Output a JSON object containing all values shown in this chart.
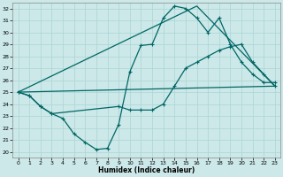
{
  "xlabel": "Humidex (Indice chaleur)",
  "xlim": [
    -0.5,
    23.5
  ],
  "ylim": [
    19.5,
    32.5
  ],
  "xticks": [
    0,
    1,
    2,
    3,
    4,
    5,
    6,
    7,
    8,
    9,
    10,
    11,
    12,
    13,
    14,
    15,
    16,
    17,
    18,
    19,
    20,
    21,
    22,
    23
  ],
  "yticks": [
    20,
    21,
    22,
    23,
    24,
    25,
    26,
    27,
    28,
    29,
    30,
    31,
    32
  ],
  "bg_color": "#cce8e8",
  "grid_color": "#aad4d4",
  "line_color": "#006666",
  "line1_x": [
    0,
    1,
    2,
    3,
    4,
    5,
    6,
    7,
    8,
    9,
    10,
    11,
    12,
    13,
    14,
    15,
    16,
    17,
    18,
    19,
    20,
    21,
    22,
    23
  ],
  "line1_y": [
    25.0,
    24.7,
    23.8,
    23.2,
    22.8,
    21.5,
    20.8,
    20.2,
    20.3,
    22.3,
    26.7,
    28.9,
    29.0,
    31.2,
    32.2,
    32.0,
    31.2,
    30.0,
    31.2,
    29.0,
    27.5,
    26.5,
    25.8,
    25.8
  ],
  "line1_markers": [
    0,
    1,
    2,
    3,
    4,
    5,
    6,
    7,
    8,
    9,
    10,
    11,
    12,
    13,
    14,
    15,
    16,
    17,
    18,
    19,
    20,
    21,
    22,
    23
  ],
  "line2_x": [
    0,
    1,
    2,
    3,
    9,
    10,
    11,
    12,
    13,
    14,
    15,
    16,
    17,
    18,
    19,
    20,
    21,
    22,
    23
  ],
  "line2_y": [
    25.0,
    24.7,
    23.8,
    23.2,
    23.8,
    23.5,
    23.5,
    23.5,
    24.0,
    25.5,
    27.0,
    27.5,
    28.0,
    28.5,
    28.8,
    29.0,
    27.5,
    26.5,
    25.5
  ],
  "line2_markers": [
    0,
    1,
    2,
    3,
    9,
    10,
    11,
    12,
    13,
    14,
    15,
    16,
    17,
    18,
    19,
    20,
    21,
    22,
    23
  ],
  "line3_x": [
    0,
    23
  ],
  "line3_y": [
    25.0,
    25.5
  ],
  "line4_x": [
    0,
    16,
    23
  ],
  "line4_y": [
    25.0,
    32.2,
    25.5
  ]
}
